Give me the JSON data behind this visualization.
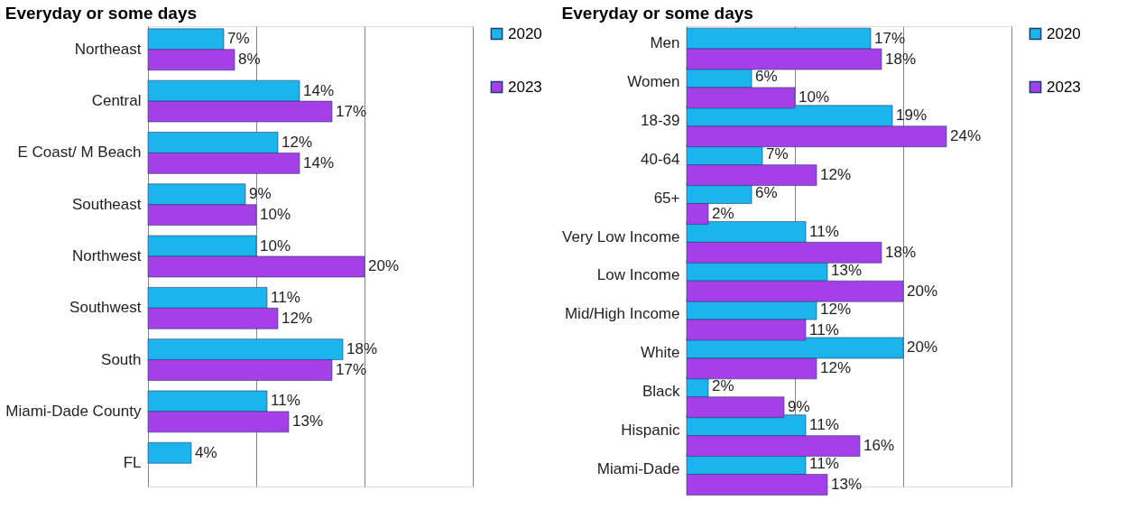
{
  "chart_data": [
    {
      "type": "bar",
      "orientation": "horizontal",
      "title": "Everyday or some days",
      "categories": [
        "Northeast",
        "Central",
        "E Coast/ M Beach",
        "Southeast",
        "Northwest",
        "Southwest",
        "South",
        "Miami-Dade County",
        "FL"
      ],
      "series": [
        {
          "name": "2020",
          "color": "#1bb4ec",
          "values": [
            7,
            14,
            12,
            9,
            10,
            11,
            18,
            11,
            4
          ],
          "value_labels": [
            "7%",
            "14%",
            "12%",
            "9%",
            "10%",
            "11%",
            "18%",
            "11%",
            "4%"
          ]
        },
        {
          "name": "2023",
          "color": "#a540e8",
          "values": [
            8,
            17,
            14,
            10,
            20,
            12,
            17,
            13,
            null
          ],
          "value_labels": [
            "8%",
            "17%",
            "14%",
            "10%",
            "20%",
            "12%",
            "17%",
            "13%",
            null
          ]
        }
      ],
      "xlim": [
        0,
        30
      ],
      "xticks": [
        {
          "value": 0,
          "label": null
        },
        {
          "value": 10,
          "label": null
        },
        {
          "value": 20,
          "label": null
        },
        {
          "value": 30,
          "label": null
        }
      ],
      "tick_labels": "y",
      "grid": "x",
      "legend": "right"
    },
    {
      "type": "bar",
      "orientation": "horizontal",
      "title": "Everyday or some days",
      "categories": [
        "Men",
        "Women",
        "18-39",
        "40-64",
        "65+",
        "Very Low Income",
        "Low Income",
        "Mid/High Income",
        "White",
        "Black",
        "Hispanic",
        "Miami-Dade"
      ],
      "series": [
        {
          "name": "2020",
          "color": "#1bb4ec",
          "values": [
            17,
            6,
            19,
            7,
            6,
            11,
            13,
            12,
            20,
            2,
            11,
            11
          ],
          "value_labels": [
            "17%",
            "6%",
            "19%",
            "7%",
            "6%",
            "11%",
            "13%",
            "12%",
            "20%",
            "2%",
            "11%",
            "11%"
          ]
        },
        {
          "name": "2023",
          "color": "#a540e8",
          "values": [
            18,
            10,
            24,
            12,
            2,
            18,
            20,
            11,
            12,
            9,
            16,
            13
          ],
          "value_labels": [
            "18%",
            "10%",
            "24%",
            "12%",
            "2%",
            "18%",
            "20%",
            "11%",
            "12%",
            "9%",
            "16%",
            "13%"
          ]
        }
      ],
      "xlim": [
        0,
        30
      ],
      "xticks": [
        {
          "value": 0,
          "label": null
        },
        {
          "value": 10,
          "label": null
        },
        {
          "value": 20,
          "label": null
        },
        {
          "value": 30,
          "label": null
        }
      ],
      "tick_labels": "y",
      "grid": "x",
      "legend": "right"
    }
  ]
}
